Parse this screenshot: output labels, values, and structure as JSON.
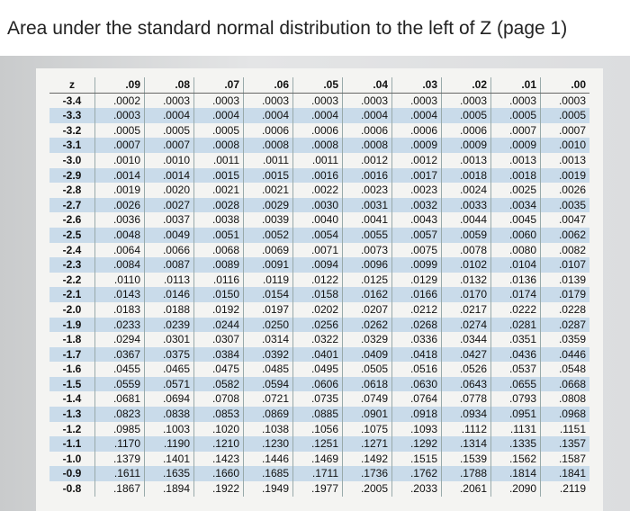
{
  "header": {
    "title": "Area under the standard normal distribution to the left of Z (page 1)"
  },
  "table": {
    "columns": [
      "z",
      ".09",
      ".08",
      ".07",
      ".06",
      ".05",
      ".04",
      ".03",
      ".02",
      ".01",
      ".00"
    ],
    "rows": [
      [
        "-3.4",
        ".0002",
        ".0003",
        ".0003",
        ".0003",
        ".0003",
        ".0003",
        ".0003",
        ".0003",
        ".0003",
        ".0003"
      ],
      [
        "-3.3",
        ".0003",
        ".0004",
        ".0004",
        ".0004",
        ".0004",
        ".0004",
        ".0004",
        ".0005",
        ".0005",
        ".0005"
      ],
      [
        "-3.2",
        ".0005",
        ".0005",
        ".0005",
        ".0006",
        ".0006",
        ".0006",
        ".0006",
        ".0006",
        ".0007",
        ".0007"
      ],
      [
        "-3.1",
        ".0007",
        ".0007",
        ".0008",
        ".0008",
        ".0008",
        ".0008",
        ".0009",
        ".0009",
        ".0009",
        ".0010"
      ],
      [
        "-3.0",
        ".0010",
        ".0010",
        ".0011",
        ".0011",
        ".0011",
        ".0012",
        ".0012",
        ".0013",
        ".0013",
        ".0013"
      ],
      [
        "-2.9",
        ".0014",
        ".0014",
        ".0015",
        ".0015",
        ".0016",
        ".0016",
        ".0017",
        ".0018",
        ".0018",
        ".0019"
      ],
      [
        "-2.8",
        ".0019",
        ".0020",
        ".0021",
        ".0021",
        ".0022",
        ".0023",
        ".0023",
        ".0024",
        ".0025",
        ".0026"
      ],
      [
        "-2.7",
        ".0026",
        ".0027",
        ".0028",
        ".0029",
        ".0030",
        ".0031",
        ".0032",
        ".0033",
        ".0034",
        ".0035"
      ],
      [
        "-2.6",
        ".0036",
        ".0037",
        ".0038",
        ".0039",
        ".0040",
        ".0041",
        ".0043",
        ".0044",
        ".0045",
        ".0047"
      ],
      [
        "-2.5",
        ".0048",
        ".0049",
        ".0051",
        ".0052",
        ".0054",
        ".0055",
        ".0057",
        ".0059",
        ".0060",
        ".0062"
      ],
      [
        "-2.4",
        ".0064",
        ".0066",
        ".0068",
        ".0069",
        ".0071",
        ".0073",
        ".0075",
        ".0078",
        ".0080",
        ".0082"
      ],
      [
        "-2.3",
        ".0084",
        ".0087",
        ".0089",
        ".0091",
        ".0094",
        ".0096",
        ".0099",
        ".0102",
        ".0104",
        ".0107"
      ],
      [
        "-2.2",
        ".0110",
        ".0113",
        ".0116",
        ".0119",
        ".0122",
        ".0125",
        ".0129",
        ".0132",
        ".0136",
        ".0139"
      ],
      [
        "-2.1",
        ".0143",
        ".0146",
        ".0150",
        ".0154",
        ".0158",
        ".0162",
        ".0166",
        ".0170",
        ".0174",
        ".0179"
      ],
      [
        "-2.0",
        ".0183",
        ".0188",
        ".0192",
        ".0197",
        ".0202",
        ".0207",
        ".0212",
        ".0217",
        ".0222",
        ".0228"
      ],
      [
        "-1.9",
        ".0233",
        ".0239",
        ".0244",
        ".0250",
        ".0256",
        ".0262",
        ".0268",
        ".0274",
        ".0281",
        ".0287"
      ],
      [
        "-1.8",
        ".0294",
        ".0301",
        ".0307",
        ".0314",
        ".0322",
        ".0329",
        ".0336",
        ".0344",
        ".0351",
        ".0359"
      ],
      [
        "-1.7",
        ".0367",
        ".0375",
        ".0384",
        ".0392",
        ".0401",
        ".0409",
        ".0418",
        ".0427",
        ".0436",
        ".0446"
      ],
      [
        "-1.6",
        ".0455",
        ".0465",
        ".0475",
        ".0485",
        ".0495",
        ".0505",
        ".0516",
        ".0526",
        ".0537",
        ".0548"
      ],
      [
        "-1.5",
        ".0559",
        ".0571",
        ".0582",
        ".0594",
        ".0606",
        ".0618",
        ".0630",
        ".0643",
        ".0655",
        ".0668"
      ],
      [
        "-1.4",
        ".0681",
        ".0694",
        ".0708",
        ".0721",
        ".0735",
        ".0749",
        ".0764",
        ".0778",
        ".0793",
        ".0808"
      ],
      [
        "-1.3",
        ".0823",
        ".0838",
        ".0853",
        ".0869",
        ".0885",
        ".0901",
        ".0918",
        ".0934",
        ".0951",
        ".0968"
      ],
      [
        "-1.2",
        ".0985",
        ".1003",
        ".1020",
        ".1038",
        ".1056",
        ".1075",
        ".1093",
        ".1112",
        ".1131",
        ".1151"
      ],
      [
        "-1.1",
        ".1170",
        ".1190",
        ".1210",
        ".1230",
        ".1251",
        ".1271",
        ".1292",
        ".1314",
        ".1335",
        ".1357"
      ],
      [
        "-1.0",
        ".1379",
        ".1401",
        ".1423",
        ".1446",
        ".1469",
        ".1492",
        ".1515",
        ".1539",
        ".1562",
        ".1587"
      ],
      [
        "-0.9",
        ".1611",
        ".1635",
        ".1660",
        ".1685",
        ".1711",
        ".1736",
        ".1762",
        ".1788",
        ".1814",
        ".1841"
      ],
      [
        "-0.8",
        ".1867",
        ".1894",
        ".1922",
        ".1949",
        ".1977",
        ".2005",
        ".2033",
        ".2061",
        ".2090",
        ".2119"
      ]
    ]
  }
}
